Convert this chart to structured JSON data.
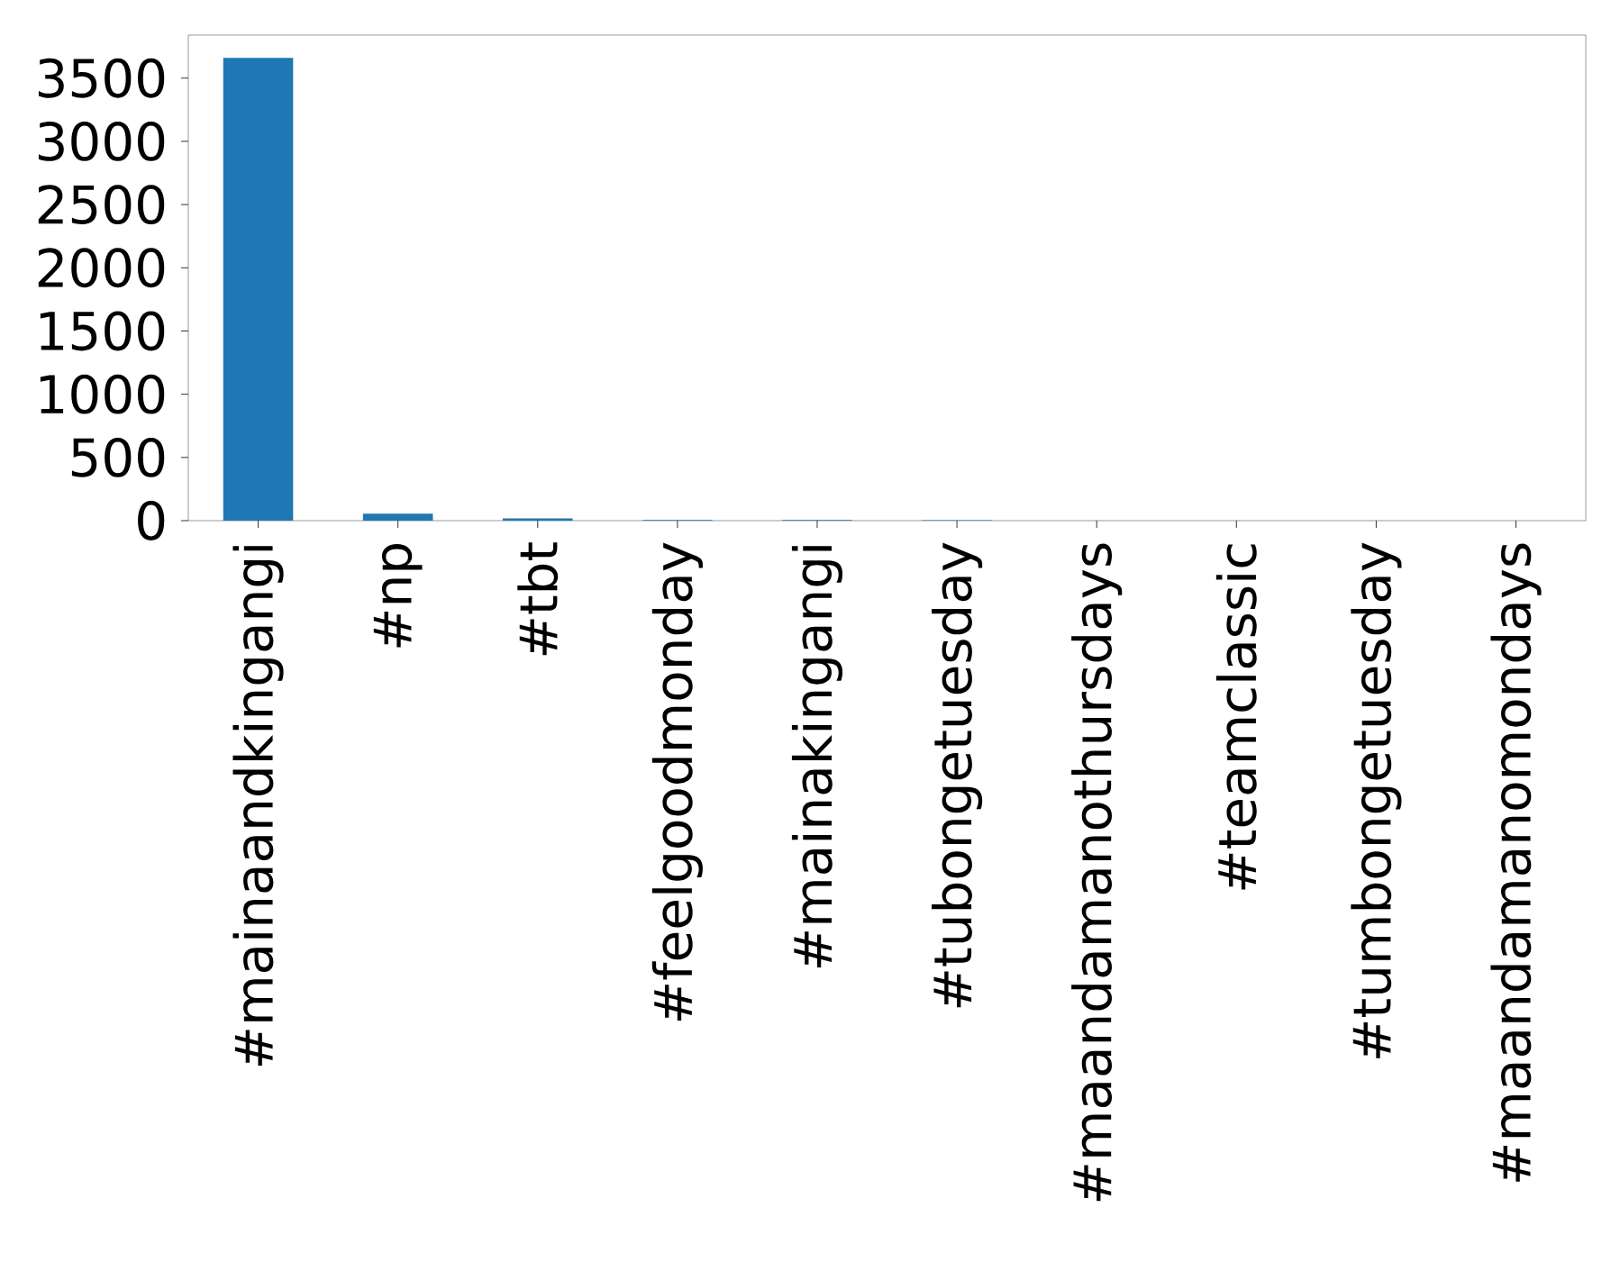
{
  "chart_data": {
    "type": "bar",
    "categories": [
      "#mainaandkingangi",
      "#np",
      "#tbt",
      "#feelgoodmonday",
      "#mainakingangi",
      "#tubongetuesday",
      "#maandamanothursdays",
      "#teamclassic",
      "#tumbongetuesday",
      "#maandamanomondays"
    ],
    "values": [
      3660,
      55,
      18,
      6,
      5,
      4,
      null,
      null,
      null,
      null
    ],
    "color": "#1f77b4",
    "ylim": [
      0,
      3840
    ],
    "yticks": [
      0,
      500,
      1000,
      1500,
      2000,
      2500,
      3000,
      3500
    ],
    "grid": false
  }
}
